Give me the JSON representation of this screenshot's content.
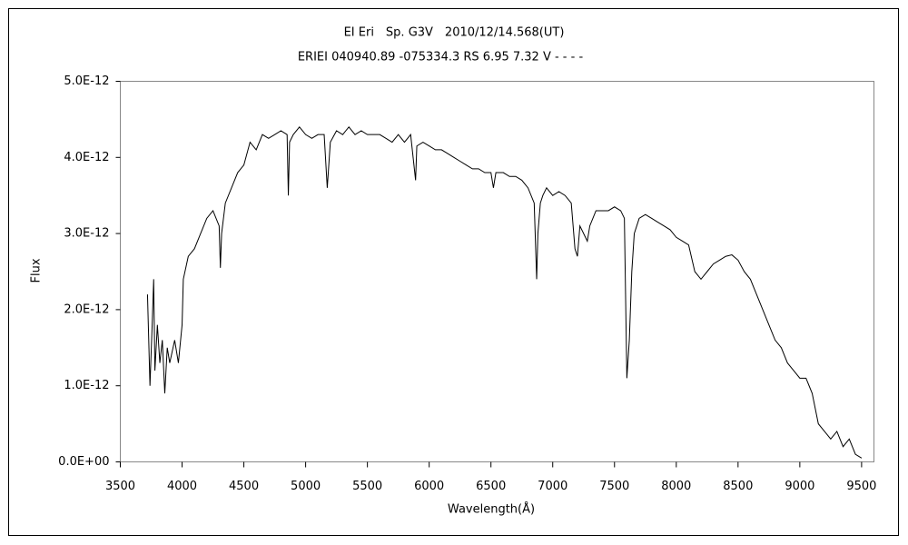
{
  "chart_data": {
    "type": "line",
    "title": "EI Eri　Sp. G3V　2010/12/14.568(UT)",
    "subtitle": "ERIEI 040940.89 -075334.3 RS 6.95 7.32 V - - - -",
    "x_label": "Wavelength(Å)",
    "y_label": "Flux",
    "color": "#000000",
    "grid": false,
    "xlim": [
      3500,
      9600
    ],
    "xticks": [
      3500,
      4000,
      4500,
      5000,
      5500,
      6000,
      6500,
      7000,
      7500,
      8000,
      8500,
      9000,
      9500
    ],
    "ylim": [
      0,
      5e-12
    ],
    "yticks": [
      {
        "value": 0,
        "label": "0.0E+00"
      },
      {
        "value": 1e-12,
        "label": "1.0E-12"
      },
      {
        "value": 2e-12,
        "label": "2.0E-12"
      },
      {
        "value": 3e-12,
        "label": "3.0E-12"
      },
      {
        "value": 4e-12,
        "label": "4.0E-12"
      },
      {
        "value": 5e-12,
        "label": "5.0E-12"
      }
    ],
    "x": [
      3720,
      3740,
      3760,
      3770,
      3780,
      3800,
      3820,
      3840,
      3860,
      3880,
      3900,
      3940,
      3970,
      4000,
      4010,
      4050,
      4100,
      4150,
      4200,
      4250,
      4300,
      4310,
      4320,
      4350,
      4400,
      4450,
      4500,
      4550,
      4600,
      4650,
      4700,
      4750,
      4800,
      4850,
      4860,
      4870,
      4900,
      4950,
      5000,
      5050,
      5100,
      5150,
      5175,
      5200,
      5250,
      5300,
      5350,
      5400,
      5450,
      5500,
      5550,
      5600,
      5650,
      5700,
      5750,
      5800,
      5850,
      5890,
      5900,
      5950,
      6000,
      6050,
      6100,
      6150,
      6200,
      6250,
      6300,
      6350,
      6400,
      6450,
      6500,
      6520,
      6540,
      6600,
      6650,
      6700,
      6750,
      6800,
      6850,
      6870,
      6880,
      6900,
      6920,
      6950,
      7000,
      7050,
      7100,
      7150,
      7180,
      7200,
      7220,
      7250,
      7280,
      7300,
      7350,
      7400,
      7450,
      7500,
      7550,
      7580,
      7600,
      7620,
      7640,
      7660,
      7700,
      7750,
      7800,
      7850,
      7900,
      7950,
      8000,
      8050,
      8100,
      8150,
      8200,
      8250,
      8300,
      8350,
      8400,
      8450,
      8500,
      8550,
      8600,
      8650,
      8700,
      8750,
      8800,
      8850,
      8900,
      8950,
      9000,
      9050,
      9100,
      9150,
      9200,
      9250,
      9300,
      9350,
      9400,
      9450,
      9500
    ],
    "values": [
      2.2e-12,
      1e-12,
      1.9e-12,
      2.4e-12,
      1.2e-12,
      1.8e-12,
      1.3e-12,
      1.6e-12,
      9e-13,
      1.5e-12,
      1.3e-12,
      1.6e-12,
      1.3e-12,
      1.8e-12,
      2.4e-12,
      2.7e-12,
      2.8e-12,
      3e-12,
      3.2e-12,
      3.3e-12,
      3.1e-12,
      2.55e-12,
      3e-12,
      3.4e-12,
      3.6e-12,
      3.8e-12,
      3.9e-12,
      4.2e-12,
      4.1e-12,
      4.3e-12,
      4.25e-12,
      4.3e-12,
      4.35e-12,
      4.3e-12,
      3.5e-12,
      4.2e-12,
      4.3e-12,
      4.4e-12,
      4.3e-12,
      4.25e-12,
      4.3e-12,
      4.3e-12,
      3.6e-12,
      4.2e-12,
      4.35e-12,
      4.3e-12,
      4.4e-12,
      4.3e-12,
      4.35e-12,
      4.3e-12,
      4.3e-12,
      4.3e-12,
      4.25e-12,
      4.2e-12,
      4.3e-12,
      4.2e-12,
      4.3e-12,
      3.7e-12,
      4.15e-12,
      4.2e-12,
      4.15e-12,
      4.1e-12,
      4.1e-12,
      4.05e-12,
      4e-12,
      3.95e-12,
      3.9e-12,
      3.85e-12,
      3.85e-12,
      3.8e-12,
      3.8e-12,
      3.6e-12,
      3.8e-12,
      3.8e-12,
      3.75e-12,
      3.75e-12,
      3.7e-12,
      3.6e-12,
      3.4e-12,
      2.4e-12,
      3e-12,
      3.4e-12,
      3.5e-12,
      3.6e-12,
      3.5e-12,
      3.55e-12,
      3.5e-12,
      3.4e-12,
      2.8e-12,
      2.7e-12,
      3.1e-12,
      3e-12,
      2.9e-12,
      3.1e-12,
      3.3e-12,
      3.3e-12,
      3.3e-12,
      3.35e-12,
      3.3e-12,
      3.2e-12,
      1.1e-12,
      1.6e-12,
      2.5e-12,
      3e-12,
      3.2e-12,
      3.25e-12,
      3.2e-12,
      3.15e-12,
      3.1e-12,
      3.05e-12,
      2.95e-12,
      2.9e-12,
      2.85e-12,
      2.5e-12,
      2.4e-12,
      2.5e-12,
      2.6e-12,
      2.65e-12,
      2.7e-12,
      2.72e-12,
      2.65e-12,
      2.5e-12,
      2.4e-12,
      2.2e-12,
      2e-12,
      1.8e-12,
      1.6e-12,
      1.5e-12,
      1.3e-12,
      1.2e-12,
      1.1e-12,
      1.1e-12,
      9e-13,
      5e-13,
      4e-13,
      3e-13,
      4e-13,
      2e-13,
      3e-13,
      1e-13,
      5e-14
    ]
  }
}
